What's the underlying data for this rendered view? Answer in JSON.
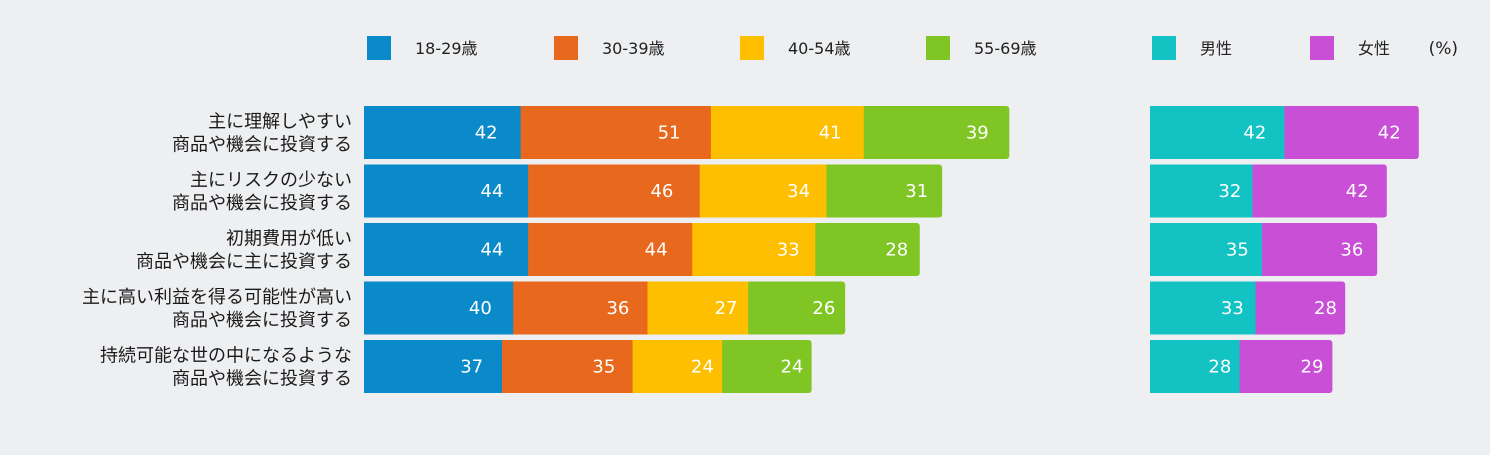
{
  "chart_data": {
    "type": "bar",
    "stacked": true,
    "orientation": "horizontal",
    "unit": "(%)",
    "categories": [
      [
        "主に理解しやすい",
        "商品や機会に投資する"
      ],
      [
        "主にリスクの少ない",
        "商品や機会に投資する"
      ],
      [
        "初期費用が低い",
        "商品や機会に主に投資する"
      ],
      [
        "主に高い利益を得る可能性が高い",
        "商品や機会に投資する"
      ],
      [
        "持続可能な世の中になるような",
        "商品や機会に投資する"
      ]
    ],
    "age_series": [
      {
        "name": "18-29歳",
        "color": "#0a8ac9",
        "values": [
          42,
          44,
          44,
          40,
          37
        ]
      },
      {
        "name": "30-39歳",
        "color": "#e8691d",
        "values": [
          51,
          46,
          44,
          36,
          35
        ]
      },
      {
        "name": "40-54歳",
        "color": "#fdbf00",
        "values": [
          41,
          34,
          33,
          27,
          24
        ]
      },
      {
        "name": "55-69歳",
        "color": "#7fc625",
        "values": [
          39,
          31,
          28,
          26,
          24
        ]
      }
    ],
    "gender_series": [
      {
        "name": "男性",
        "color": "#13c3c3",
        "values": [
          42,
          32,
          35,
          33,
          28
        ]
      },
      {
        "name": "女性",
        "color": "#c84fd6",
        "values": [
          42,
          42,
          36,
          28,
          29
        ]
      }
    ]
  }
}
